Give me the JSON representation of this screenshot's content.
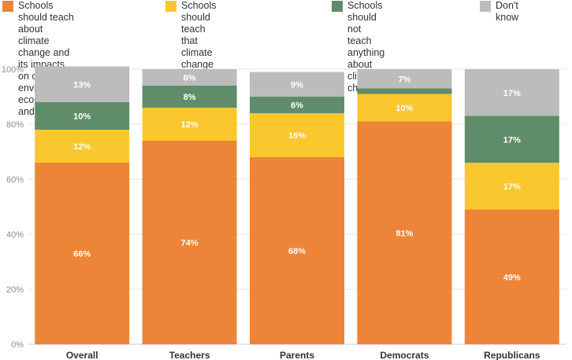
{
  "legend": [
    {
      "label": "Schools should teach about\nclimate change and its impacts\non our environment, economy\nand society",
      "color": "#ec8537"
    },
    {
      "label": "Schools should teach that\nclimate change exists, but not\nthe potential impacts",
      "color": "#fbc72e"
    },
    {
      "label": "Schools should not teach\nanything about climate change",
      "color": "#5f8d6a"
    },
    {
      "label": "Don't know",
      "color": "#bcbcbc"
    }
  ],
  "chart_data": {
    "type": "bar",
    "stacked": true,
    "categories": [
      "Overall",
      "Teachers",
      "Parents",
      "Democrats",
      "Republicans"
    ],
    "series": [
      {
        "name": "Schools should teach about climate change and its impacts on our environment, economy and society",
        "color": "#ec8537",
        "values": [
          66,
          74,
          68,
          81,
          49
        ],
        "labels": [
          "66%",
          "74%",
          "68%",
          "81%",
          "49%"
        ]
      },
      {
        "name": "Schools should teach that climate change exists, but not the potential impacts",
        "color": "#fbc72e",
        "values": [
          12,
          12,
          16,
          10,
          17
        ],
        "labels": [
          "12%",
          "12%",
          "16%",
          "10%",
          "17%"
        ]
      },
      {
        "name": "Schools should not teach anything about climate change",
        "color": "#5f8d6a",
        "values": [
          10,
          8,
          6,
          2,
          17
        ],
        "labels": [
          "10%",
          "8%",
          "6%",
          "",
          "17%"
        ]
      },
      {
        "name": "Don't know",
        "color": "#bcbcbc",
        "values": [
          13,
          6,
          9,
          7,
          17
        ],
        "labels": [
          "13%",
          "6%",
          "9%",
          "7%",
          "17%"
        ]
      }
    ],
    "ylim": [
      0,
      100
    ],
    "yticks": [
      0,
      20,
      40,
      60,
      80,
      100
    ],
    "ytick_labels": [
      "0%",
      "20%",
      "40%",
      "60%",
      "80%",
      "100%"
    ],
    "grid": true,
    "legend_position": "top"
  }
}
